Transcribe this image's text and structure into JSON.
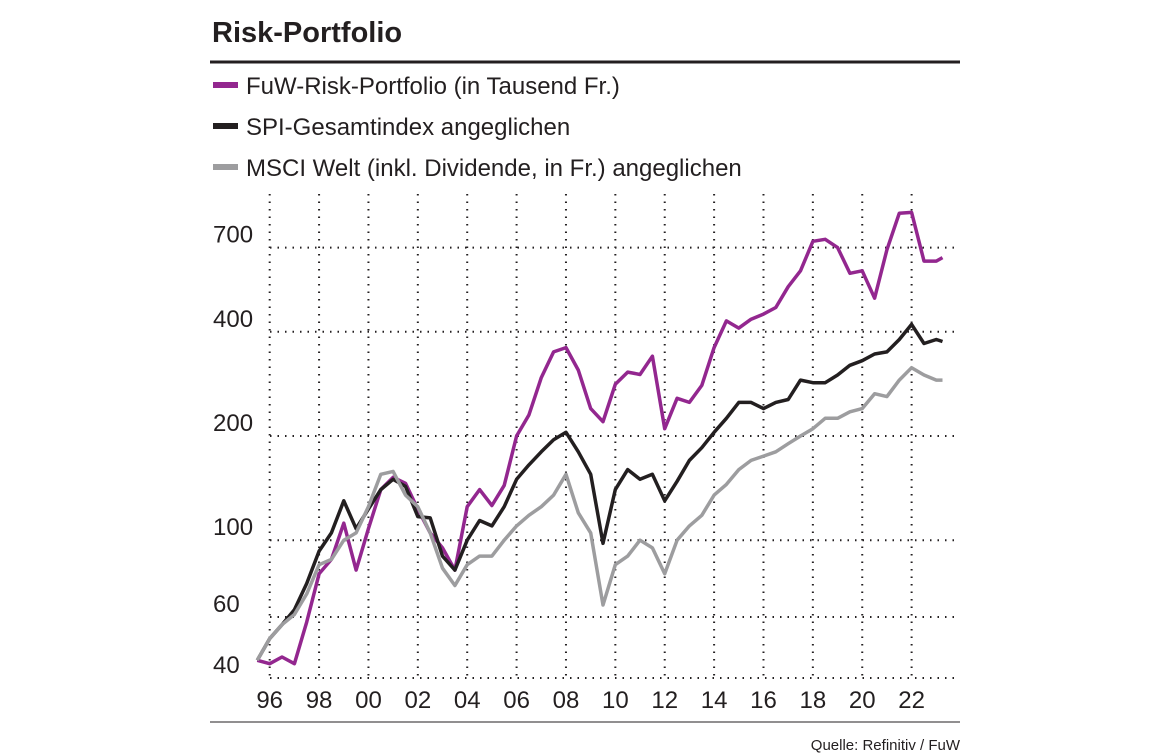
{
  "chart_data": {
    "type": "line",
    "title": "Risk-Portfolio",
    "source": "Quelle: Refinitiv / FuW",
    "yscale": "log",
    "grid": true,
    "legend": "top-left",
    "xlim": [
      1995,
      2024
    ],
    "xticks": [
      {
        "value": 1996,
        "label": "96"
      },
      {
        "value": 1998,
        "label": "98"
      },
      {
        "value": 2000,
        "label": "00"
      },
      {
        "value": 2002,
        "label": "02"
      },
      {
        "value": 2004,
        "label": "04"
      },
      {
        "value": 2006,
        "label": "06"
      },
      {
        "value": 2008,
        "label": "08"
      },
      {
        "value": 2010,
        "label": "10"
      },
      {
        "value": 2012,
        "label": "12"
      },
      {
        "value": 2014,
        "label": "14"
      },
      {
        "value": 2016,
        "label": "16"
      },
      {
        "value": 2018,
        "label": "18"
      },
      {
        "value": 2020,
        "label": "20"
      },
      {
        "value": 2022,
        "label": "22"
      }
    ],
    "ylim": [
      40,
      1000
    ],
    "yticks": [
      40,
      60,
      100,
      200,
      400,
      700
    ],
    "x": [
      1995.5,
      1996,
      1996.5,
      1997,
      1997.5,
      1998,
      1998.5,
      1999,
      1999.5,
      2000,
      2000.5,
      2001,
      2001.5,
      2002,
      2002.5,
      2003,
      2003.5,
      2004,
      2004.5,
      2005,
      2005.5,
      2006,
      2006.5,
      2007,
      2007.5,
      2008,
      2008.5,
      2009,
      2009.5,
      2010,
      2010.5,
      2011,
      2011.5,
      2012,
      2012.5,
      2013,
      2013.5,
      2014,
      2014.5,
      2015,
      2015.5,
      2016,
      2016.5,
      2017,
      2017.5,
      2018,
      2018.5,
      2019,
      2019.5,
      2020,
      2020.5,
      2021,
      2021.5,
      2022,
      2022.5,
      2023,
      2023.25
    ],
    "series": [
      {
        "name": "FuW-Risk-Portfolio (in Tausend Fr.)",
        "color": "#93278f",
        "values": [
          45,
          44,
          46,
          44,
          58,
          80,
          88,
          112,
          82,
          108,
          140,
          152,
          146,
          123,
          105,
          95,
          82,
          125,
          140,
          126,
          144,
          200,
          230,
          295,
          350,
          360,
          310,
          240,
          220,
          282,
          306,
          301,
          340,
          210,
          257,
          250,
          280,
          360,
          430,
          410,
          435,
          450,
          470,
          540,
          600,
          730,
          740,
          700,
          590,
          600,
          500,
          690,
          880,
          885,
          640,
          640,
          655
        ]
      },
      {
        "name": "SPI-Gesamtindex angeglichen",
        "color": "#231f20",
        "values": [
          45,
          52,
          57,
          63,
          75,
          93,
          105,
          130,
          108,
          123,
          140,
          150,
          143,
          117,
          116,
          90,
          82,
          100,
          114,
          110,
          125,
          150,
          165,
          180,
          195,
          205,
          180,
          155,
          98,
          140,
          160,
          150,
          155,
          130,
          148,
          170,
          185,
          205,
          225,
          250,
          250,
          240,
          250,
          255,
          290,
          285,
          285,
          300,
          320,
          330,
          345,
          350,
          380,
          420,
          370,
          380,
          375
        ]
      },
      {
        "name": "MSCI Welt (inkl. Dividende, in Fr.) angeglichen",
        "color": "#9d9d9f",
        "values": [
          45,
          52,
          57,
          61,
          70,
          85,
          88,
          100,
          105,
          125,
          155,
          158,
          135,
          125,
          105,
          83,
          74,
          85,
          90,
          90,
          100,
          110,
          118,
          125,
          135,
          155,
          120,
          105,
          65,
          85,
          90,
          100,
          95,
          80,
          100,
          110,
          118,
          135,
          145,
          160,
          170,
          175,
          180,
          190,
          200,
          210,
          225,
          225,
          235,
          240,
          265,
          260,
          290,
          315,
          300,
          290,
          290
        ]
      }
    ]
  }
}
